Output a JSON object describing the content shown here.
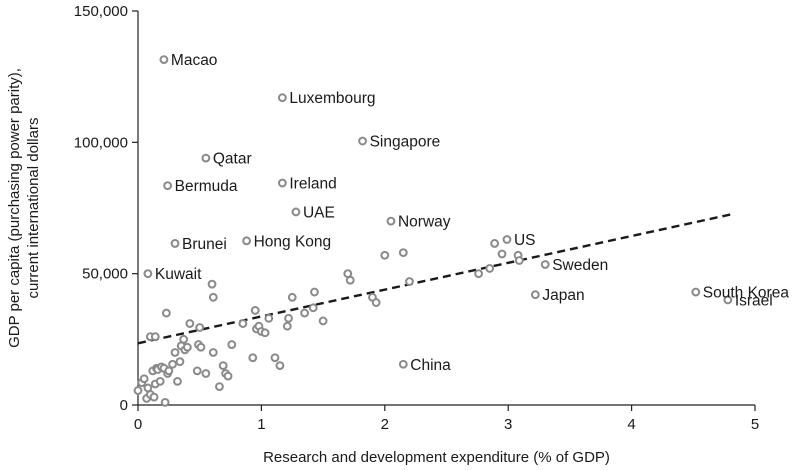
{
  "chart_data": {
    "type": "scatter",
    "xlabel": "Research and development expenditure (% of GDP)",
    "ylabel_lines": [
      "GDP per capita (purchasing power parity),",
      "current international dollars"
    ],
    "xlim": [
      0,
      5
    ],
    "ylim": [
      0,
      150000
    ],
    "x_ticks": [
      "0",
      "1",
      "2",
      "3",
      "4",
      "5"
    ],
    "y_ticks": [
      "0",
      "50,000",
      "100,000",
      "150,000"
    ],
    "grid": false,
    "trendline": {
      "style": "dashed",
      "x": [
        0,
        4.8
      ],
      "y": [
        23500,
        72500
      ]
    },
    "labeled_points": [
      {
        "label": "Macao",
        "x": 0.21,
        "y": 131500
      },
      {
        "label": "Luxembourg",
        "x": 1.17,
        "y": 117000
      },
      {
        "label": "Singapore",
        "x": 1.82,
        "y": 100500
      },
      {
        "label": "Qatar",
        "x": 0.55,
        "y": 94000
      },
      {
        "label": "Ireland",
        "x": 1.17,
        "y": 84500
      },
      {
        "label": "Bermuda",
        "x": 0.24,
        "y": 83500
      },
      {
        "label": "UAE",
        "x": 1.28,
        "y": 73500
      },
      {
        "label": "Norway",
        "x": 2.05,
        "y": 70000
      },
      {
        "label": "Hong Kong",
        "x": 0.88,
        "y": 62500
      },
      {
        "label": "Brunei",
        "x": 0.3,
        "y": 61500
      },
      {
        "label": "US",
        "x": 2.99,
        "y": 63000
      },
      {
        "label": "Sweden",
        "x": 3.3,
        "y": 53500
      },
      {
        "label": "Kuwait",
        "x": 0.08,
        "y": 50000
      },
      {
        "label": "South Korea",
        "x": 4.52,
        "y": 43000
      },
      {
        "label": "Japan",
        "x": 3.22,
        "y": 42000
      },
      {
        "label": "Israel",
        "x": 4.78,
        "y": 40000
      },
      {
        "label": "China",
        "x": 2.15,
        "y": 15500
      }
    ],
    "unlabeled_points": [
      [
        0.0,
        5500
      ],
      [
        0.03,
        8500
      ],
      [
        0.05,
        10000
      ],
      [
        0.07,
        2500
      ],
      [
        0.08,
        6500
      ],
      [
        0.1,
        4000
      ],
      [
        0.1,
        26000
      ],
      [
        0.12,
        13000
      ],
      [
        0.13,
        3000
      ],
      [
        0.14,
        26000
      ],
      [
        0.14,
        8000
      ],
      [
        0.15,
        14000
      ],
      [
        0.16,
        13500
      ],
      [
        0.18,
        9000
      ],
      [
        0.19,
        14500
      ],
      [
        0.21,
        14000
      ],
      [
        0.22,
        1000
      ],
      [
        0.23,
        35000
      ],
      [
        0.24,
        12000
      ],
      [
        0.25,
        13000
      ],
      [
        0.28,
        15500
      ],
      [
        0.3,
        20000
      ],
      [
        0.32,
        9000
      ],
      [
        0.34,
        16500
      ],
      [
        0.35,
        22500
      ],
      [
        0.37,
        25000
      ],
      [
        0.38,
        21000
      ],
      [
        0.4,
        22000
      ],
      [
        0.42,
        31000
      ],
      [
        0.48,
        13000
      ],
      [
        0.49,
        23000
      ],
      [
        0.5,
        29500
      ],
      [
        0.51,
        22000
      ],
      [
        0.55,
        12000
      ],
      [
        0.6,
        46000
      ],
      [
        0.61,
        41000
      ],
      [
        0.61,
        20000
      ],
      [
        0.66,
        7000
      ],
      [
        0.69,
        15000
      ],
      [
        0.71,
        12000
      ],
      [
        0.73,
        11000
      ],
      [
        0.76,
        23000
      ],
      [
        0.85,
        31000
      ],
      [
        0.93,
        18000
      ],
      [
        0.95,
        36000
      ],
      [
        0.96,
        29000
      ],
      [
        0.98,
        30000
      ],
      [
        1.0,
        28000
      ],
      [
        1.03,
        27500
      ],
      [
        1.06,
        33000
      ],
      [
        1.11,
        18000
      ],
      [
        1.15,
        15000
      ],
      [
        1.21,
        30000
      ],
      [
        1.22,
        33000
      ],
      [
        1.25,
        41000
      ],
      [
        1.35,
        35000
      ],
      [
        1.42,
        37000
      ],
      [
        1.43,
        43000
      ],
      [
        1.5,
        32000
      ],
      [
        1.7,
        50000
      ],
      [
        1.72,
        47500
      ],
      [
        1.9,
        41000
      ],
      [
        1.93,
        39000
      ],
      [
        2.0,
        57000
      ],
      [
        2.15,
        58000
      ],
      [
        2.2,
        47000
      ],
      [
        2.76,
        50000
      ],
      [
        2.85,
        52000
      ],
      [
        2.89,
        61500
      ],
      [
        2.95,
        57500
      ],
      [
        3.08,
        57000
      ],
      [
        3.09,
        55000
      ]
    ]
  }
}
